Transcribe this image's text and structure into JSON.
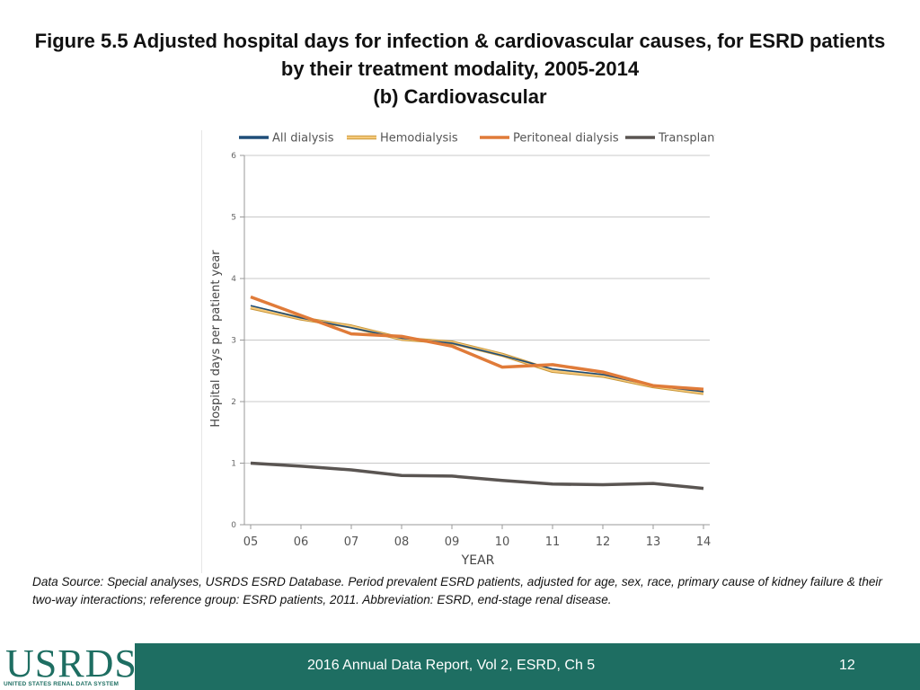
{
  "header": {
    "title_line1": "Figure 5.5 Adjusted hospital days for infection & cardiovascular causes, for ESRD patients",
    "title_line2": "by their treatment modality, 2005-2014",
    "title_line3": "(b) Cardiovascular"
  },
  "chart_data": {
    "type": "line",
    "title": "",
    "xlabel": "YEAR",
    "ylabel": "Hospital days per patient year",
    "categories": [
      "05",
      "06",
      "07",
      "08",
      "09",
      "10",
      "11",
      "12",
      "13",
      "14"
    ],
    "ylim": [
      0,
      6
    ],
    "yticks": [
      "0",
      "1",
      "2",
      "3",
      "4",
      "5",
      "6"
    ],
    "legend_position": "top",
    "grid": true,
    "series": [
      {
        "name": "All dialysis",
        "color": "#1f4e79",
        "values": [
          3.56,
          3.36,
          3.2,
          3.03,
          2.95,
          2.75,
          2.53,
          2.44,
          2.26,
          2.16
        ]
      },
      {
        "name": "Hemodialysis",
        "color": "#f6c97a",
        "values": [
          3.53,
          3.35,
          3.22,
          3.02,
          2.96,
          2.76,
          2.5,
          2.42,
          2.25,
          2.14
        ]
      },
      {
        "name": "Peritoneal dialysis",
        "color": "#e07b39",
        "values": [
          3.7,
          3.4,
          3.1,
          3.06,
          2.9,
          2.56,
          2.6,
          2.48,
          2.26,
          2.2
        ]
      },
      {
        "name": "Transplant",
        "color": "#5a5552",
        "values": [
          1.0,
          0.95,
          0.89,
          0.8,
          0.79,
          0.72,
          0.66,
          0.65,
          0.67,
          0.59
        ]
      }
    ]
  },
  "source": {
    "text": "Data Source: Special analyses, USRDS ESRD Database. Period prevalent ESRD patients, adjusted for age, sex, race, primary cause of kidney failure & their two-way interactions; reference group: ESRD patients, 2011. Abbreviation: ESRD, end-stage renal disease."
  },
  "footer": {
    "logo_text": "USRDS",
    "logo_subtitle": "UNITED STATES RENAL DATA SYSTEM",
    "report_label": "2016 Annual Data Report, Vol 2, ESRD, Ch 5",
    "page_number": "12"
  }
}
